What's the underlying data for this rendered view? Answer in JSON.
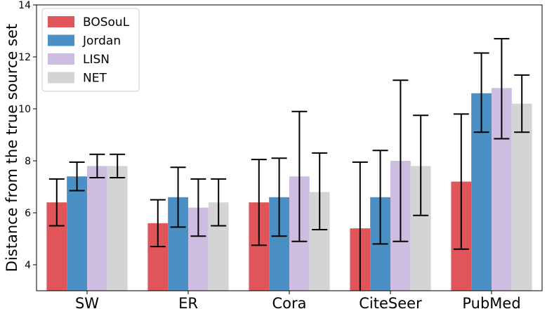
{
  "chart_data": {
    "type": "bar",
    "title": "",
    "xlabel": "",
    "ylabel": "Distance from the true source set",
    "categories": [
      "SW",
      "ER",
      "Cora",
      "CiteSeer",
      "PubMed"
    ],
    "ylim": [
      3,
      14
    ],
    "yticks": [
      4,
      6,
      8,
      10,
      12,
      14
    ],
    "grid": false,
    "legend_position": "top-left",
    "series": [
      {
        "name": "BOSouL",
        "color": "#e05559",
        "values": [
          6.4,
          5.6,
          6.4,
          5.4,
          7.2
        ],
        "err_low": [
          5.5,
          4.7,
          4.75,
          2.85,
          4.6
        ],
        "err_high": [
          7.3,
          6.5,
          8.05,
          7.95,
          9.8
        ]
      },
      {
        "name": "Jordan",
        "color": "#4a90c4",
        "values": [
          7.4,
          6.6,
          6.6,
          6.6,
          10.6
        ],
        "err_low": [
          6.85,
          5.45,
          5.1,
          4.8,
          9.1
        ],
        "err_high": [
          7.95,
          7.75,
          8.1,
          8.4,
          12.15
        ]
      },
      {
        "name": "LISN",
        "color": "#cdbde0",
        "values": [
          7.8,
          6.2,
          7.4,
          8.0,
          10.8
        ],
        "err_low": [
          7.35,
          5.1,
          4.9,
          4.9,
          8.85
        ],
        "err_high": [
          8.25,
          7.3,
          9.9,
          11.1,
          12.7
        ]
      },
      {
        "name": "NET",
        "color": "#d4d4d4",
        "values": [
          7.8,
          6.4,
          6.8,
          7.8,
          10.2
        ],
        "err_low": [
          7.35,
          5.5,
          5.35,
          5.9,
          9.1
        ],
        "err_high": [
          8.25,
          7.3,
          8.3,
          9.75,
          11.3
        ]
      }
    ]
  }
}
